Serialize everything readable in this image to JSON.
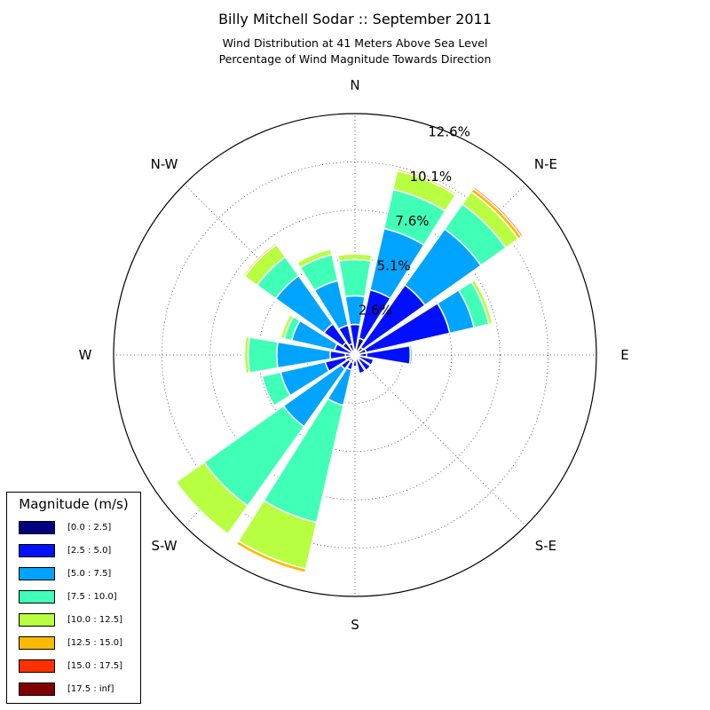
{
  "title": "Billy Mitchell Sodar :: September 2011",
  "subtitle_line1": "Wind Distribution at 41 Meters Above Sea Level",
  "subtitle_line2": "Percentage of Wind Magnitude Towards Direction",
  "legend": {
    "title": "Magnitude (m/s)",
    "items": [
      {
        "label": "[0.0 : 2.5]",
        "color": "#00007f"
      },
      {
        "label": "[2.5 : 5.0]",
        "color": "#0010ff"
      },
      {
        "label": "[5.0 : 7.5]",
        "color": "#00a4ff"
      },
      {
        "label": "[7.5 : 10.0]",
        "color": "#40ffb7"
      },
      {
        "label": "[10.0 : 12.5]",
        "color": "#b7ff40"
      },
      {
        "label": "[12.5 : 15.0]",
        "color": "#ffb900"
      },
      {
        "label": "[15.0 : 17.5]",
        "color": "#ff3000"
      },
      {
        "label": "[17.5 : inf]",
        "color": "#7f0000"
      }
    ]
  },
  "chart_data": {
    "type": "windrose",
    "direction_labels": [
      "N",
      "N-E",
      "E",
      "S-E",
      "S",
      "S-W",
      "W",
      "N-W"
    ],
    "radial_tick_labels": [
      "2.6%",
      "5.1%",
      "7.6%",
      "10.1%",
      "12.6%"
    ],
    "radial_ticks": [
      2.53,
      5.06,
      7.59,
      10.12,
      12.65
    ],
    "rmax": 12.65,
    "grid": true,
    "legend_position": "bottom-left",
    "bins": [
      "[0.0 : 2.5]",
      "[2.5 : 5.0]",
      "[5.0 : 7.5]",
      "[7.5 : 10.0]",
      "[10.0 : 12.5]",
      "[12.5 : 15.0]",
      "[15.0 : 17.5]",
      "[17.5 : inf]"
    ],
    "sectors": [
      {
        "dir": 0,
        "cum": [
          0.3,
          1.6,
          3.1,
          5.0,
          5.3
        ]
      },
      {
        "dir": 22.5,
        "cum": [
          0.9,
          3.5,
          6.8,
          8.9,
          9.9,
          10.0
        ]
      },
      {
        "dir": 45,
        "cum": [
          0.5,
          4.5,
          8.1,
          9.7,
          10.5,
          10.7,
          10.8
        ]
      },
      {
        "dir": 67.5,
        "cum": [
          0.6,
          5.1,
          6.4,
          7.2,
          7.4
        ]
      },
      {
        "dir": 90,
        "cum": [
          0.6,
          2.9,
          3.0
        ]
      },
      {
        "dir": 112.5,
        "cum": [
          0.2,
          1.0
        ]
      },
      {
        "dir": 135,
        "cum": [
          0.3,
          1.0
        ]
      },
      {
        "dir": 157.5,
        "cum": [
          0.2,
          1.0
        ]
      },
      {
        "dir": 180,
        "cum": [
          0.3,
          0.6
        ]
      },
      {
        "dir": 202.5,
        "cum": [
          0.4,
          0.8,
          2.7,
          9.0,
          11.5,
          11.7
        ]
      },
      {
        "dir": 225,
        "cum": [
          0.4,
          0.9,
          4.6,
          9.7,
          11.5
        ]
      },
      {
        "dir": 247.5,
        "cum": [
          0.5,
          1.6,
          4.0,
          5.0
        ]
      },
      {
        "dir": 270,
        "cum": [
          0.5,
          1.3,
          4.1,
          5.6,
          5.8
        ]
      },
      {
        "dir": 292.5,
        "cum": [
          0.2,
          1.1,
          3.4,
          3.8,
          4.0
        ]
      },
      {
        "dir": 315,
        "cum": [
          0.8,
          2.0,
          5.1,
          6.3,
          7.1,
          7.2
        ]
      },
      {
        "dir": 337.5,
        "cum": [
          0.6,
          1.6,
          4.0,
          5.4,
          5.7
        ]
      }
    ]
  }
}
